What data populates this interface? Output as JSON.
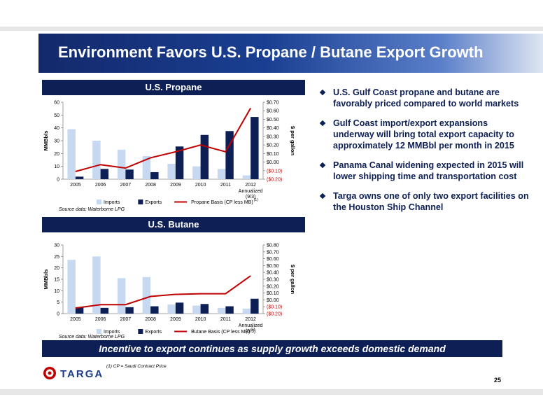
{
  "slide": {
    "title": "Environment Favors U.S. Propane / Butane Export Growth",
    "page_number": "25",
    "banner": "Incentive to export  continues as supply growth exceeds domestic demand",
    "footnote": "(1) CP = Saudi Contract Price",
    "logo_text": "TARGA"
  },
  "bullets": [
    "U.S. Gulf Coast propane and butane are favorably priced compared to world markets",
    "Gulf Coast  import/export expansions underway will bring total export capacity to approximately 12 MMBbl per month in 2015",
    "Panama Canal widening expected in 2015 will lower shipping time and transportation cost",
    "Targa owns one of only two export facilities on the Houston Ship Channel"
  ],
  "chart_data": [
    {
      "type": "bar",
      "title": "U.S. Propane",
      "categories": [
        "2005",
        "2006",
        "2007",
        "2008",
        "2009",
        "2010",
        "2011",
        "2012"
      ],
      "category_sublabels": [
        "",
        "",
        "",
        "",
        "",
        "",
        "",
        "Annualized (9/3)"
      ],
      "ylabel": "MMBbls",
      "y2label": "$ per gallon",
      "ylim": [
        0,
        60
      ],
      "yticks": [
        0,
        10,
        20,
        30,
        40,
        50,
        60
      ],
      "y2lim": [
        -0.2,
        0.7
      ],
      "y2ticks": [
        "($0.20)",
        "($0.10)",
        "$0.00",
        "$0.10",
        "$0.20",
        "$0.30",
        "$0.40",
        "$0.50",
        "$0.60",
        "$0.70"
      ],
      "series": [
        {
          "name": "Imports",
          "kind": "bar",
          "color": "#c6d9f1",
          "values": [
            39,
            30,
            23,
            18,
            12,
            10,
            8,
            3
          ]
        },
        {
          "name": "Exports",
          "kind": "bar",
          "color": "#0d1f55",
          "values": [
            2,
            8,
            7.5,
            5.5,
            25.5,
            34.5,
            37.5,
            48.5
          ]
        },
        {
          "name": "Propane Basis  (CP less MB)",
          "kind": "line",
          "axis": "right",
          "color": "#c00000",
          "superscript": "(1)",
          "values": [
            -0.11,
            -0.03,
            -0.07,
            0.05,
            0.12,
            0.2,
            0.12,
            0.63
          ]
        }
      ],
      "source": "Source data: Waterborne LPG",
      "legend": "bottom"
    },
    {
      "type": "bar",
      "title": "U.S. Butane",
      "categories": [
        "2005",
        "2006",
        "2007",
        "2008",
        "2009",
        "2010",
        "2011",
        "2012"
      ],
      "category_sublabels": [
        "",
        "",
        "",
        "",
        "",
        "",
        "",
        "Annualized (9/3)"
      ],
      "ylabel": "MMBbls",
      "y2label": "$ per gallon",
      "ylim": [
        0,
        30
      ],
      "yticks": [
        0,
        5,
        10,
        15,
        20,
        25,
        30
      ],
      "y2lim": [
        -0.2,
        0.8
      ],
      "y2ticks": [
        "($0.20)",
        "($0.10)",
        "$0.00",
        "$0.10",
        "$0.20",
        "$0.30",
        "$0.40",
        "$0.50",
        "$0.60",
        "$0.70",
        "$0.80"
      ],
      "series": [
        {
          "name": "Imports",
          "kind": "bar",
          "color": "#c6d9f1",
          "values": [
            23.5,
            25,
            15.5,
            16,
            4,
            3.5,
            2.5,
            2.2
          ]
        },
        {
          "name": "Exports",
          "kind": "bar",
          "color": "#0d1f55",
          "values": [
            2.8,
            2.5,
            2.8,
            3.2,
            4.8,
            4.2,
            3.2,
            6.5
          ]
        },
        {
          "name": "Butane Basis  (CP less MB)",
          "kind": "line",
          "axis": "right",
          "color": "#c00000",
          "superscript": "(1)",
          "values": [
            -0.12,
            -0.07,
            -0.07,
            0.05,
            0.08,
            0.09,
            0.09,
            0.35
          ]
        }
      ],
      "source": "Source data: Waterborne LPG",
      "legend": "bottom"
    }
  ]
}
